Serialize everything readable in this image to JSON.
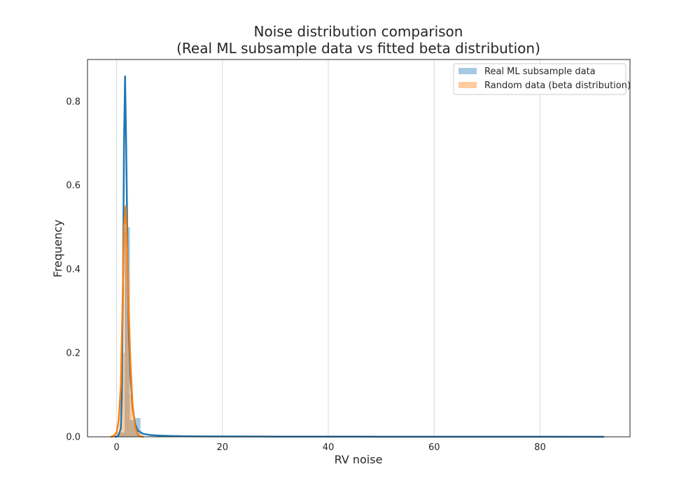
{
  "chart_data": {
    "type": "bar",
    "title": "Noise distribution comparison",
    "subtitle": "(Real ML subsample data vs fitted beta distribution)",
    "xlabel": "RV noise",
    "ylabel": "Frequency",
    "xlim": [
      -5.5,
      97
    ],
    "ylim": [
      0,
      0.9
    ],
    "xticks": [
      0,
      20,
      40,
      60,
      80
    ],
    "xtick_labels": [
      "0",
      "20",
      "40",
      "60",
      "80"
    ],
    "yticks": [
      0,
      0.2,
      0.4,
      0.6,
      0.8
    ],
    "ytick_labels": [
      "0.0",
      "0.2",
      "0.4",
      "0.6",
      "0.8"
    ],
    "grid": "vertical",
    "legend_position": "top-right",
    "series": [
      {
        "name": "Real ML subsample data",
        "color": "#1f77b4",
        "histogram": {
          "bin_width": 1.0,
          "bins": [
            {
              "start": 0.5,
              "value": 0.01
            },
            {
              "start": 1.5,
              "value": 0.5
            },
            {
              "start": 2.5,
              "value": 0.04
            },
            {
              "start": 3.5,
              "value": 0.045
            }
          ]
        },
        "density": {
          "x": [
            -0.2,
            0.3,
            0.8,
            1.0,
            1.2,
            1.4,
            1.6,
            1.8,
            2.0,
            2.3,
            2.6,
            3.0,
            3.5,
            4.0,
            5.0,
            6.5,
            8.0,
            10.0,
            15.0,
            30.0,
            50.0,
            70.0,
            92.0
          ],
          "y": [
            0.0,
            0.002,
            0.02,
            0.1,
            0.35,
            0.7,
            0.86,
            0.7,
            0.5,
            0.25,
            0.15,
            0.07,
            0.03,
            0.015,
            0.007,
            0.004,
            0.003,
            0.002,
            0.001,
            0.0005,
            0.0003,
            0.0002,
            0.0
          ]
        }
      },
      {
        "name": "Random data (beta distribution)",
        "color": "#ff7f0e",
        "histogram": {
          "bin_width": 0.5,
          "bins": [
            {
              "start": -0.5,
              "value": 0.003
            },
            {
              "start": 0.0,
              "value": 0.01
            },
            {
              "start": 0.5,
              "value": 0.03
            },
            {
              "start": 1.0,
              "value": 0.2
            },
            {
              "start": 1.5,
              "value": 0.49
            },
            {
              "start": 2.0,
              "value": 0.3
            },
            {
              "start": 2.5,
              "value": 0.1
            },
            {
              "start": 3.0,
              "value": 0.03
            },
            {
              "start": 3.5,
              "value": 0.008
            },
            {
              "start": 4.0,
              "value": 0.002
            }
          ]
        },
        "density": {
          "x": [
            -1.0,
            -0.5,
            0.0,
            0.4,
            0.8,
            1.1,
            1.4,
            1.7,
            2.0,
            2.3,
            2.6,
            3.0,
            3.4,
            3.8,
            4.2,
            5.0
          ],
          "y": [
            0.0,
            0.003,
            0.01,
            0.04,
            0.12,
            0.3,
            0.5,
            0.55,
            0.45,
            0.3,
            0.18,
            0.08,
            0.03,
            0.01,
            0.003,
            0.0
          ]
        }
      }
    ]
  }
}
